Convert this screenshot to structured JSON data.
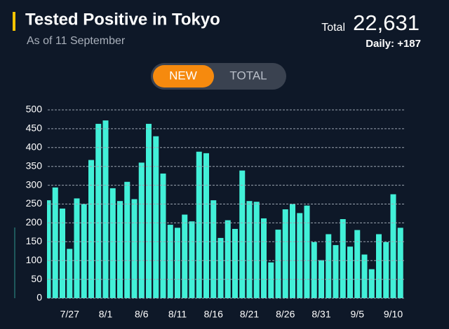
{
  "header": {
    "title": "Tested Positive in Tokyo",
    "subtitle": "As of 11 September",
    "total_label": "Total",
    "total_value": "22,631",
    "daily": "Daily: +187"
  },
  "toggle": [
    "NEW",
    "TOTAL"
  ],
  "chart_data": {
    "type": "bar",
    "color": "#42f0d8",
    "grid": true,
    "ylim": [
      0,
      500
    ],
    "yticks": [
      0,
      50,
      100,
      150,
      200,
      250,
      300,
      350,
      400,
      450,
      500
    ],
    "categories": [
      null,
      null,
      null,
      "7/27",
      null,
      null,
      null,
      null,
      "8/1",
      null,
      null,
      null,
      null,
      "8/6",
      null,
      null,
      null,
      null,
      "8/11",
      null,
      null,
      null,
      null,
      "8/16",
      null,
      null,
      null,
      null,
      "8/21",
      null,
      null,
      null,
      null,
      "8/26",
      null,
      null,
      null,
      null,
      "8/31",
      null,
      null,
      null,
      null,
      "9/5",
      null,
      null,
      null,
      null,
      "9/10",
      null
    ],
    "values": [
      260,
      294,
      238,
      131,
      265,
      250,
      367,
      463,
      472,
      292,
      258,
      309,
      263,
      360,
      463,
      430,
      331,
      195,
      187,
      222,
      204,
      389,
      385,
      260,
      160,
      207,
      184,
      339,
      258,
      256,
      212,
      95,
      182,
      236,
      250,
      226,
      246,
      149,
      101,
      170,
      141,
      210,
      137,
      181,
      116,
      77,
      170,
      149,
      276,
      187
    ]
  }
}
